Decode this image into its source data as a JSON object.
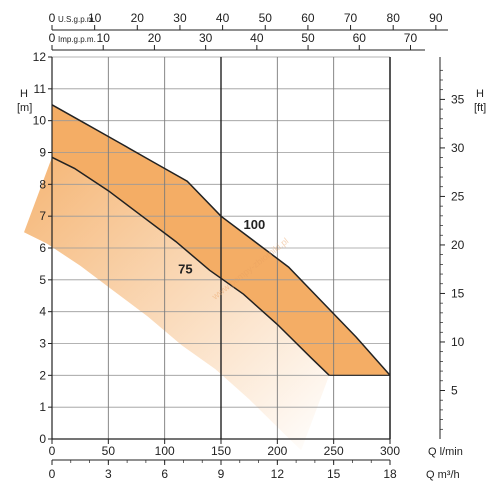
{
  "chart_data": {
    "type": "area",
    "title": "",
    "x_axis": {
      "label": "Q l/min",
      "range": [
        0,
        300
      ],
      "ticks": [
        0,
        50,
        100,
        150,
        200,
        250,
        300
      ]
    },
    "x_axis_m3h": {
      "label": "Q m³/h",
      "range": [
        0,
        18
      ],
      "ticks": [
        0,
        3,
        6,
        9,
        12,
        15,
        18
      ]
    },
    "x_axis_usgpm": {
      "label": "U.S.g.p.m.",
      "range": [
        0,
        79.25
      ],
      "ticks": [
        0,
        10,
        20,
        30,
        40,
        50,
        60,
        70,
        80,
        90
      ]
    },
    "x_axis_impgpm": {
      "label": "Imp.g.p.m.",
      "range": [
        0,
        66
      ],
      "ticks": [
        0,
        10,
        20,
        30,
        40,
        50,
        60,
        70
      ]
    },
    "y_axis_left": {
      "label": "H [m]",
      "range": [
        0,
        12
      ],
      "ticks": [
        0,
        1,
        2,
        3,
        4,
        5,
        6,
        7,
        8,
        9,
        10,
        11,
        12
      ]
    },
    "y_axis_right": {
      "label": "H [ft]",
      "range": [
        0,
        39.37
      ],
      "ticks": [
        5,
        10,
        15,
        20,
        25,
        30,
        35
      ]
    },
    "grid": true,
    "heavy_gridlines_x": [
      150,
      300
    ],
    "series": [
      {
        "name": "100",
        "color": "#222222",
        "x": [
          0,
          30,
          60,
          90,
          120,
          150,
          180,
          210,
          240,
          270,
          300
        ],
        "y": [
          10.5,
          9.9,
          9.3,
          8.7,
          8.1,
          7.0,
          6.2,
          5.4,
          4.3,
          3.2,
          2.0
        ]
      },
      {
        "name": "75",
        "color": "#222222",
        "x": [
          0,
          20,
          50,
          80,
          110,
          140,
          170,
          200,
          230,
          246
        ],
        "y": [
          8.85,
          8.5,
          7.8,
          7.0,
          6.2,
          5.3,
          4.55,
          3.6,
          2.55,
          2.0
        ]
      }
    ],
    "fill_color": "#f4ad65",
    "watermark": "www.pompy-zbiorniki.pl"
  }
}
